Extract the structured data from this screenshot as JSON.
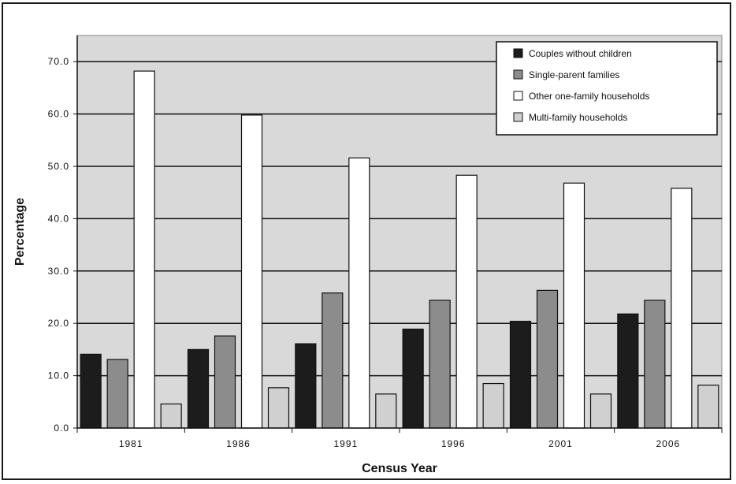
{
  "chart_data": {
    "type": "bar",
    "title": "",
    "xlabel": "Census Year",
    "ylabel": "Percentage",
    "categories": [
      "1981",
      "1986",
      "1991",
      "1996",
      "2001",
      "2006"
    ],
    "series": [
      {
        "name": "Couples without children",
        "color": "#1c1c1c",
        "values": [
          14.1,
          15.0,
          16.1,
          18.9,
          20.4,
          21.8
        ]
      },
      {
        "name": "Single-parent families",
        "color": "#8c8c8c",
        "values": [
          13.1,
          17.6,
          25.8,
          24.4,
          26.3,
          24.4
        ]
      },
      {
        "name": "Other one-family households",
        "color": "#ffffff",
        "values": [
          68.2,
          59.8,
          51.6,
          48.3,
          46.8,
          45.8
        ]
      },
      {
        "name": "Multi-family households",
        "color": "#d0d0d0",
        "values": [
          4.6,
          7.7,
          6.5,
          8.5,
          6.5,
          8.2
        ]
      }
    ],
    "y_ticks": [
      "0.0",
      "10.0",
      "20.0",
      "30.0",
      "40.0",
      "50.0",
      "60.0",
      "70.0"
    ],
    "ylim": [
      0,
      75
    ],
    "grid": true,
    "legend_position": "top-right",
    "plot_background": "#d9d9d9"
  }
}
